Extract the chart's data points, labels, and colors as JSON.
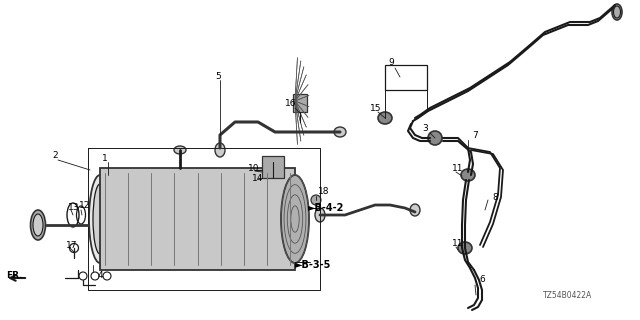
{
  "bg_color": "#ffffff",
  "line_color": "#1a1a1a",
  "line_color2": "#333333",
  "text_color": "#000000",
  "gray": "#888888",
  "figsize": [
    6.4,
    3.2
  ],
  "dpi": 100,
  "note_code": "TZ54B0422A"
}
